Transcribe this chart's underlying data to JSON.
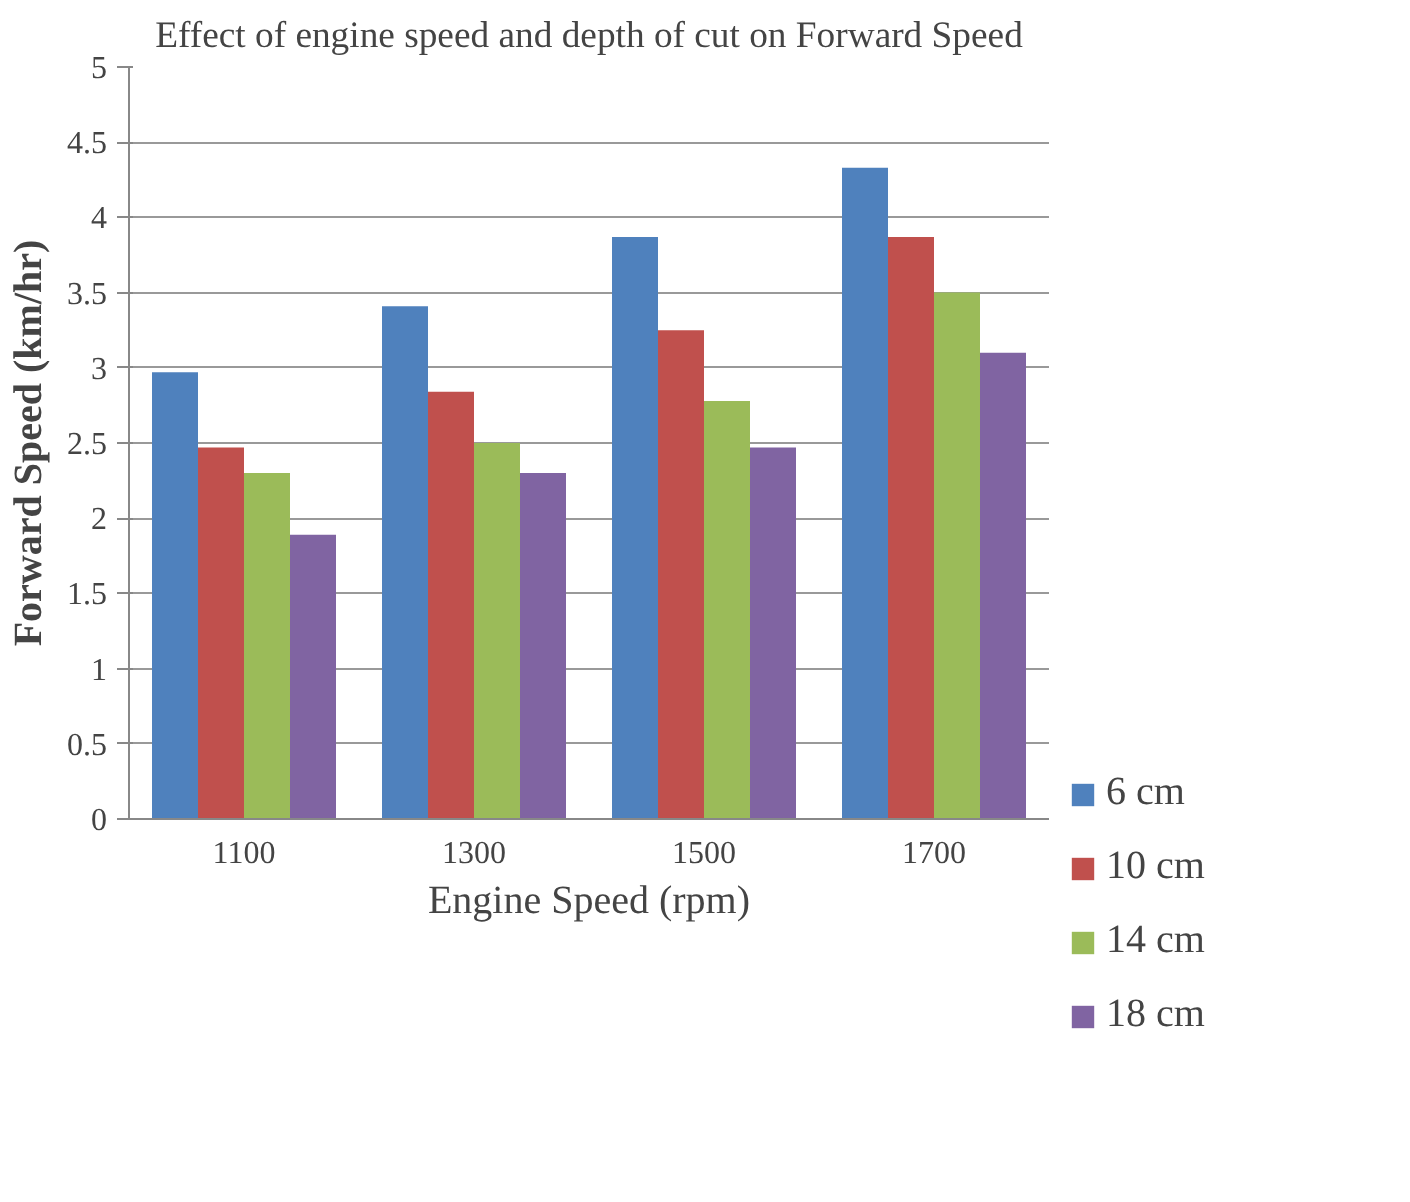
{
  "chart_data": {
    "type": "bar",
    "title": "Effect of engine speed and depth of cut on Forward Speed",
    "xlabel": "Engine Speed (rpm)",
    "ylabel": "Forward Speed (km/hr)",
    "categories": [
      "1100",
      "1300",
      "1500",
      "1700"
    ],
    "series": [
      {
        "name": "6 cm",
        "color": "#4f81bd",
        "values": [
          2.97,
          3.41,
          3.87,
          4.33
        ]
      },
      {
        "name": "10 cm",
        "color": "#c0504d",
        "values": [
          2.47,
          2.84,
          3.25,
          3.87
        ]
      },
      {
        "name": "14 cm",
        "color": "#9bbb59",
        "values": [
          2.3,
          2.5,
          2.78,
          3.5
        ]
      },
      {
        "name": "18 cm",
        "color": "#8064a2",
        "values": [
          1.89,
          2.3,
          2.47,
          3.1
        ]
      }
    ],
    "ylim": [
      0,
      5
    ],
    "yticks": [
      0,
      0.5,
      1,
      1.5,
      2,
      2.5,
      3,
      3.5,
      4,
      4.5,
      5
    ],
    "grid": "y",
    "legend": "right"
  }
}
